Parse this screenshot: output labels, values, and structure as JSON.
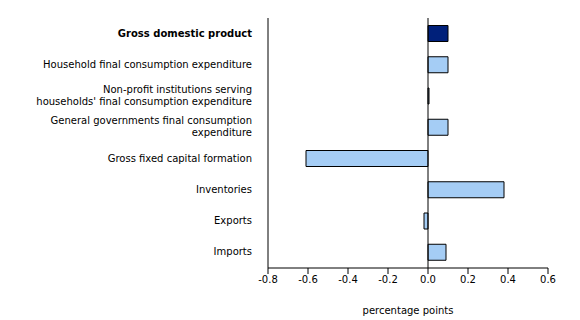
{
  "chart_data": {
    "type": "bar",
    "orientation": "horizontal",
    "categories": [
      "Gross domestic product",
      "Household final consumption expenditure",
      "Non-profit institutions serving households' final consumption expenditure",
      "General governments final consumption expenditure",
      "Gross fixed capital formation",
      "Inventories",
      "Exports",
      "Imports"
    ],
    "values": [
      0.1,
      0.1,
      0.005,
      0.1,
      -0.61,
      0.38,
      -0.02,
      0.09
    ],
    "colors": [
      "#00207a",
      "#a5cdf5",
      "#a5cdf5",
      "#a5cdf5",
      "#a5cdf5",
      "#a5cdf5",
      "#a5cdf5",
      "#a5cdf5"
    ],
    "x_label": "percentage points",
    "xlim": [
      -0.8,
      0.6
    ],
    "xticks": [
      -0.8,
      -0.6,
      -0.4,
      -0.2,
      {
        "value": 0,
        "label": "0.0"
      },
      0.2,
      0.4,
      0.6
    ],
    "grid": false
  }
}
